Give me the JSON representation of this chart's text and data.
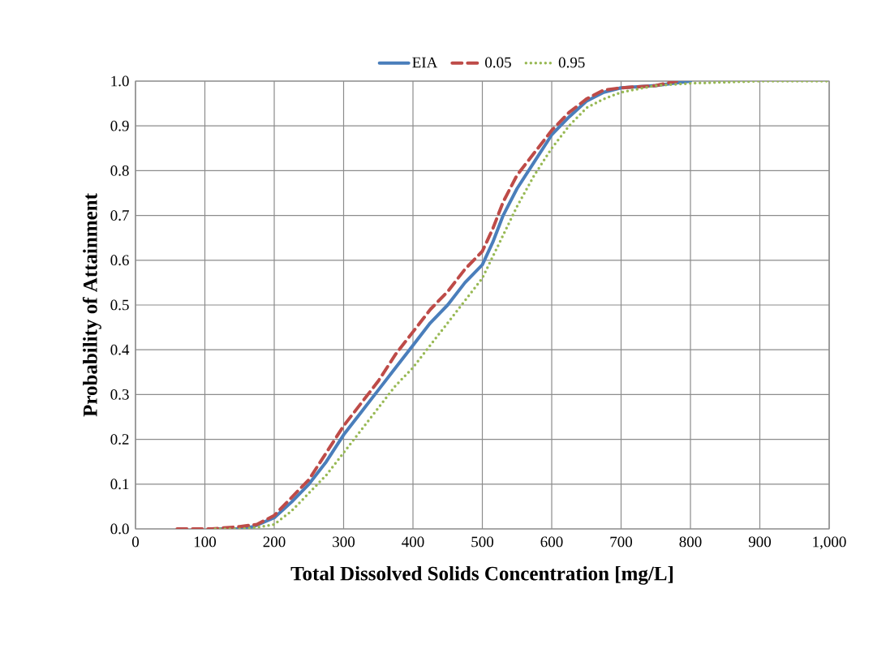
{
  "chart_data": {
    "type": "line",
    "xlabel": "Total Dissolved Solids Concentration [mg/L]",
    "ylabel": "Probability of Attainment",
    "series": [
      {
        "name": "EIA",
        "color": "#4a7ebb",
        "line_style": "solid",
        "x": [
          110,
          150,
          170,
          200,
          225,
          250,
          275,
          300,
          325,
          350,
          375,
          400,
          425,
          450,
          475,
          500,
          515,
          530,
          550,
          575,
          600,
          625,
          650,
          675,
          700,
          750,
          800
        ],
        "values": [
          0,
          0,
          0.005,
          0.025,
          0.06,
          0.1,
          0.15,
          0.21,
          0.26,
          0.31,
          0.36,
          0.41,
          0.46,
          0.5,
          0.55,
          0.59,
          0.64,
          0.7,
          0.76,
          0.82,
          0.88,
          0.92,
          0.955,
          0.975,
          0.985,
          0.99,
          1.0
        ]
      },
      {
        "name": "0.05",
        "color": "#be4b48",
        "line_style": "dashed",
        "x": [
          60,
          110,
          150,
          175,
          200,
          225,
          250,
          275,
          300,
          325,
          350,
          375,
          400,
          425,
          450,
          475,
          500,
          515,
          530,
          550,
          575,
          600,
          625,
          650,
          675,
          700,
          750,
          780
        ],
        "values": [
          0,
          0,
          0.005,
          0.01,
          0.03,
          0.07,
          0.11,
          0.17,
          0.23,
          0.28,
          0.33,
          0.39,
          0.44,
          0.49,
          0.53,
          0.58,
          0.62,
          0.67,
          0.73,
          0.79,
          0.84,
          0.89,
          0.93,
          0.96,
          0.98,
          0.985,
          0.99,
          1.0
        ]
      },
      {
        "name": "0.95",
        "color": "#98b954",
        "line_style": "dotted",
        "x": [
          115,
          150,
          175,
          200,
          225,
          250,
          275,
          300,
          325,
          350,
          375,
          400,
          425,
          450,
          475,
          500,
          525,
          550,
          575,
          600,
          625,
          650,
          675,
          700,
          750,
          800,
          900,
          1000
        ],
        "values": [
          0,
          0,
          0.003,
          0.01,
          0.04,
          0.08,
          0.12,
          0.17,
          0.22,
          0.27,
          0.32,
          0.36,
          0.41,
          0.46,
          0.51,
          0.56,
          0.64,
          0.72,
          0.79,
          0.85,
          0.9,
          0.94,
          0.96,
          0.975,
          0.99,
          0.995,
          1.0,
          1.0
        ]
      }
    ],
    "xlim": [
      0,
      1000
    ],
    "ylim": [
      0,
      1
    ],
    "xticks": [
      0,
      100,
      200,
      300,
      400,
      500,
      600,
      700,
      800,
      900,
      {
        "value": 1000,
        "label": "1,000"
      }
    ],
    "yticks": [
      {
        "value": 0,
        "label": "0.0"
      },
      {
        "value": 0.1,
        "label": "0.1"
      },
      {
        "value": 0.2,
        "label": "0.2"
      },
      {
        "value": 0.3,
        "label": "0.3"
      },
      {
        "value": 0.4,
        "label": "0.4"
      },
      {
        "value": 0.5,
        "label": "0.5"
      },
      {
        "value": 0.6,
        "label": "0.6"
      },
      {
        "value": 0.7,
        "label": "0.7"
      },
      {
        "value": 0.8,
        "label": "0.8"
      },
      {
        "value": 0.9,
        "label": "0.9"
      },
      {
        "value": 1,
        "label": "1.0"
      }
    ],
    "grid": true,
    "legend": "top",
    "marker": "none"
  }
}
